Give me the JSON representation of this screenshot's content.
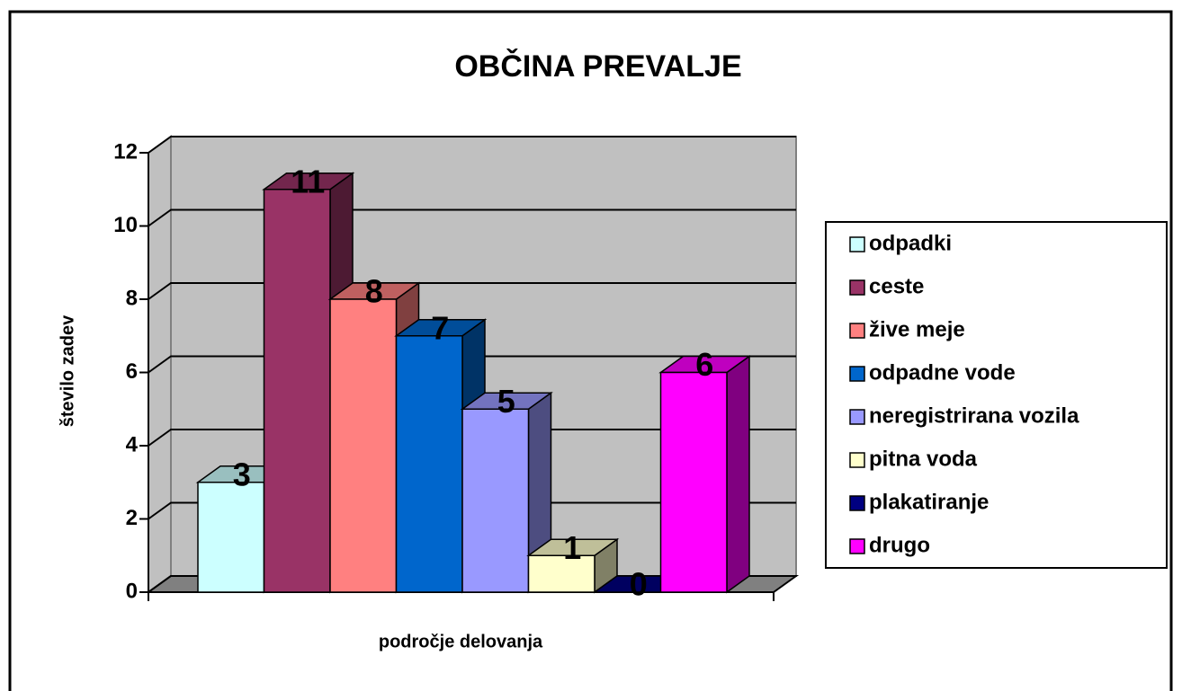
{
  "chart_data": {
    "type": "bar3d",
    "title": "OBČINA PREVALJE",
    "x_label": "področje delovanja",
    "y_label": "število zadev",
    "categories": [
      null
    ],
    "series": [
      {
        "name": "odpadki",
        "color": "#ccffff",
        "values": [
          3
        ]
      },
      {
        "name": "ceste",
        "color": "#993366",
        "values": [
          11
        ]
      },
      {
        "name": "žive meje",
        "color": "#ff8080",
        "values": [
          8
        ]
      },
      {
        "name": "odpadne vode",
        "color": "#0066cc",
        "values": [
          7
        ]
      },
      {
        "name": "neregistrirana vozila",
        "color": "#9999ff",
        "values": [
          5
        ]
      },
      {
        "name": "pitna voda",
        "color": "#ffffcc",
        "values": [
          1
        ]
      },
      {
        "name": "plakatiranje",
        "color": "#000080",
        "values": [
          0
        ]
      },
      {
        "name": "drugo",
        "color": "#ff00ff",
        "values": [
          6
        ]
      }
    ],
    "ylim": [
      0,
      12
    ],
    "yticks": [
      0,
      2,
      4,
      6,
      8,
      10,
      12
    ],
    "grid": true,
    "legend": "right"
  }
}
